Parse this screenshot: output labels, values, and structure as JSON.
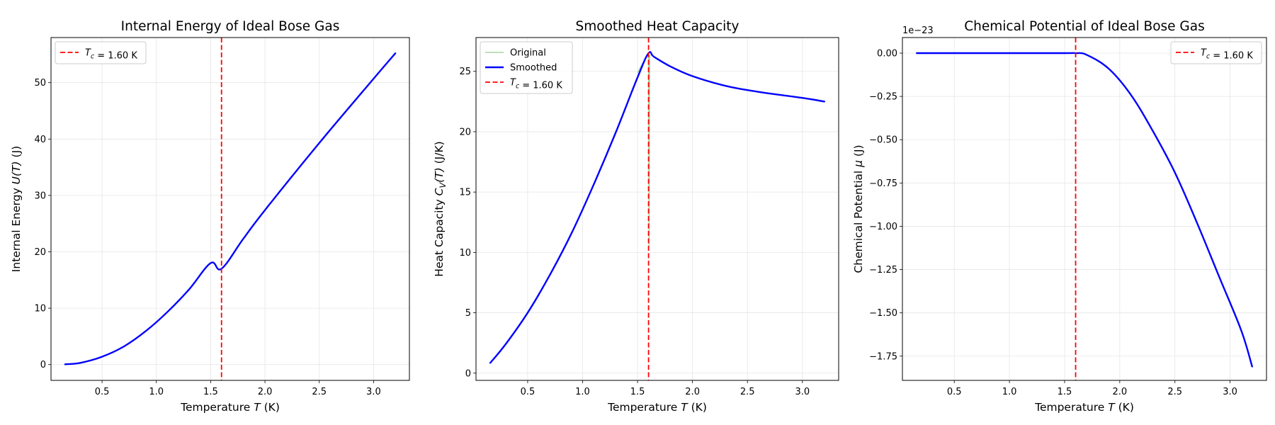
{
  "chart_data": [
    {
      "type": "line",
      "title": "Internal Energy of Ideal Bose Gas",
      "xlabel": "Temperature $T$ (K)",
      "ylabel": "Internal Energy $U(T)$ (J)",
      "xlim": [
        0.03,
        3.33
      ],
      "ylim": [
        -2.8,
        58.0
      ],
      "xticks": [
        "0.5",
        "1.0",
        "1.5",
        "2.0",
        "2.5",
        "3.0"
      ],
      "yticks": [
        "0",
        "10",
        "20",
        "30",
        "40",
        "50"
      ],
      "grid": true,
      "legend_position": "upper left",
      "legend": [
        "$T_c$ = 1.60 K"
      ],
      "vline": {
        "x": 1.6,
        "color": "#ff0000",
        "label": "$T_c$ = 1.60 K"
      },
      "series": [
        {
          "color": "#0000ff",
          "x": [
            0.16,
            0.3,
            0.5,
            0.7,
            0.9,
            1.1,
            1.3,
            1.5,
            1.6,
            1.8,
            2.0,
            2.5,
            3.0,
            3.2
          ],
          "y": [
            0.05,
            0.3,
            1.4,
            3.2,
            5.9,
            9.3,
            13.3,
            18.0,
            17.0,
            22.3,
            27.4,
            39.3,
            50.7,
            55.2
          ]
        }
      ]
    },
    {
      "type": "line",
      "title": "Smoothed Heat Capacity",
      "xlabel": "Temperature $T$ (K)",
      "ylabel": "Heat Capacity $C_V(T)$ (J/K)",
      "xlim": [
        0.03,
        3.33
      ],
      "ylim": [
        -0.6,
        27.8
      ],
      "xticks": [
        "0.5",
        "1.0",
        "1.5",
        "2.0",
        "2.5",
        "3.0"
      ],
      "yticks": [
        "0",
        "5",
        "10",
        "15",
        "20",
        "25"
      ],
      "grid": true,
      "legend_position": "upper left",
      "legend": [
        "Original",
        "Smoothed",
        "$T_c$ = 1.60 K"
      ],
      "vline": {
        "x": 1.6,
        "color": "#ff0000",
        "label": "$T_c$ = 1.60 K"
      },
      "series": [
        {
          "name": "Original",
          "color": "#a8d5a0",
          "x": [
            1.5,
            1.59,
            1.6,
            1.605,
            1.61,
            1.62
          ],
          "y": [
            24.9,
            26.4,
            26.5,
            10.5,
            26.3,
            26.3
          ]
        },
        {
          "name": "Smoothed",
          "color": "#0000ff",
          "x": [
            0.16,
            0.3,
            0.5,
            0.7,
            0.9,
            1.1,
            1.3,
            1.5,
            1.6,
            1.65,
            1.8,
            2.0,
            2.3,
            2.6,
            3.0,
            3.2
          ],
          "y": [
            0.85,
            2.4,
            5.0,
            8.1,
            11.6,
            15.6,
            19.9,
            24.5,
            26.5,
            26.2,
            25.4,
            24.6,
            23.8,
            23.3,
            22.8,
            22.5
          ]
        }
      ]
    },
    {
      "type": "line",
      "title": "Chemical Potential of Ideal Bose Gas",
      "xlabel": "Temperature $T$ (K)",
      "ylabel": "Chemical Potential $\\mu$ (J)",
      "offset_text": "1e−23",
      "xlim": [
        0.03,
        3.33
      ],
      "ylim": [
        -1.89,
        0.09
      ],
      "xticks": [
        "0.5",
        "1.0",
        "1.5",
        "2.0",
        "2.5",
        "3.0"
      ],
      "yticks": [
        "0.00",
        "−0.25",
        "−0.50",
        "−0.75",
        "−1.00",
        "−1.25",
        "−1.50",
        "−1.75"
      ],
      "grid": true,
      "legend_position": "upper right",
      "legend": [
        "$T_c$ = 1.60 K"
      ],
      "vline": {
        "x": 1.6,
        "color": "#ff0000",
        "label": "$T_c$ = 1.60 K"
      },
      "series": [
        {
          "color": "#0000ff",
          "x": [
            0.16,
            0.5,
            1.0,
            1.5,
            1.6,
            1.7,
            1.9,
            2.1,
            2.3,
            2.5,
            2.7,
            2.9,
            3.1,
            3.2
          ],
          "y": [
            0.0,
            0.0,
            0.0,
            0.0,
            0.0,
            -0.01,
            -0.09,
            -0.24,
            -0.45,
            -0.69,
            -0.98,
            -1.29,
            -1.6,
            -1.81
          ]
        }
      ]
    }
  ]
}
